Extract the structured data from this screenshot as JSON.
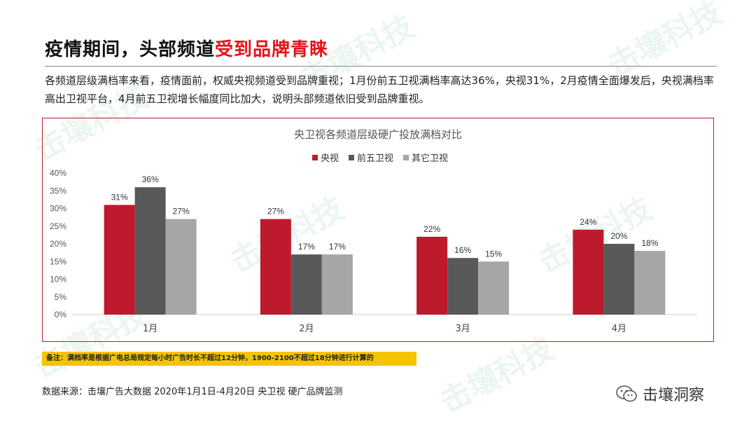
{
  "header": {
    "title_plain": "疫情期间，头部频道",
    "title_highlight": "受到品牌青睐",
    "description": "各频道层级满档率来看，疫情面前，权威央视频道受到品牌重视；1月份前五卫视满档率高达36%，央视31%，2月疫情全面爆发后，央视满档率高出卫视平台，4月前五卫视增长幅度同比加大，说明头部频道依旧受到品牌重视。"
  },
  "chart_data": {
    "type": "bar",
    "title": "央卫视各频道层级硬广投放满档对比",
    "categories": [
      "1月",
      "2月",
      "3月",
      "4月"
    ],
    "series": [
      {
        "name": "央视",
        "values": [
          31,
          27,
          22,
          24
        ],
        "color": "#be1a2e"
      },
      {
        "name": "前五卫视",
        "values": [
          36,
          17,
          16,
          20
        ],
        "color": "#595959"
      },
      {
        "name": "其它卫视",
        "values": [
          27,
          17,
          15,
          18
        ],
        "color": "#a6a6a6"
      }
    ],
    "ylim": [
      0,
      40
    ],
    "yticks": [
      "0%",
      "5%",
      "10%",
      "15%",
      "20%",
      "25%",
      "30%",
      "35%",
      "40%"
    ],
    "value_suffix": "%",
    "legend_position": "top-center",
    "grid": false
  },
  "footer": {
    "note": "备注：满档率是根据广电总局规定每小时广告时长不超过12分钟，1900-2100不超过18分钟进行计算的",
    "source": "数据来源：击壤广告大数据 2020年1月1日-4月20日 央卫视 硬广品牌监测",
    "brand": "击壤洞察"
  },
  "watermark": {
    "text": "击壤科技"
  }
}
